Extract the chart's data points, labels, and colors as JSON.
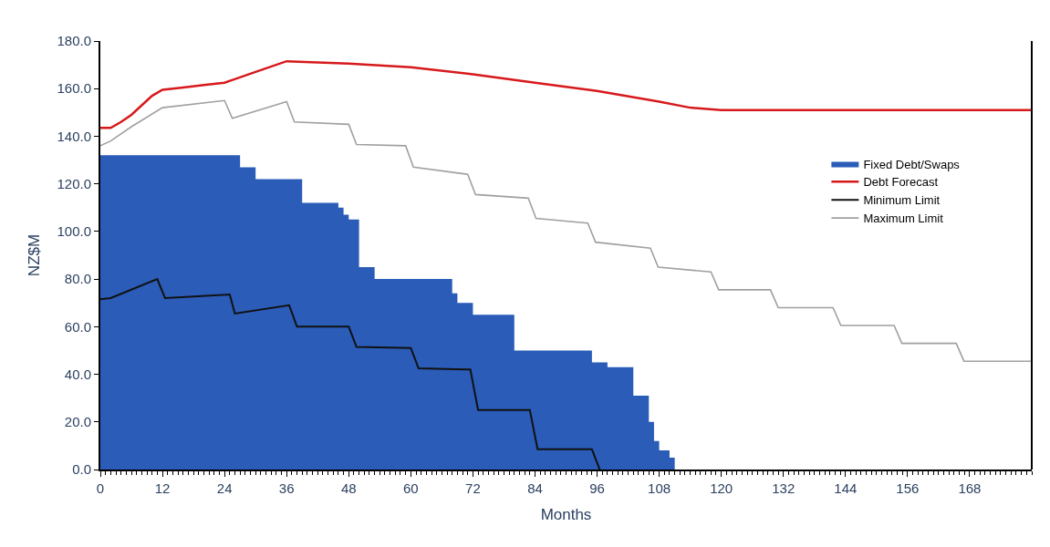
{
  "chart_data": {
    "type": "line",
    "xlabel": "Months",
    "ylabel": "NZ$M",
    "xlim": [
      0,
      180
    ],
    "ylim": [
      0,
      180
    ],
    "xticks": [
      0,
      12,
      24,
      36,
      48,
      60,
      72,
      84,
      96,
      108,
      120,
      132,
      144,
      156,
      168
    ],
    "yticks": [
      {
        "value": 0,
        "label": "0.0"
      },
      {
        "value": 20,
        "label": "20.0"
      },
      {
        "value": 40,
        "label": "40.0"
      },
      {
        "value": 60,
        "label": "60.0"
      },
      {
        "value": 80,
        "label": "80.0"
      },
      {
        "value": 100,
        "label": "100.0"
      },
      {
        "value": 120,
        "label": "120.0"
      },
      {
        "value": 140,
        "label": "140.0"
      },
      {
        "value": 160,
        "label": "160.0"
      },
      {
        "value": 180,
        "label": "180.0"
      }
    ],
    "legend": "right",
    "marker": "none",
    "series": [
      {
        "name": "Fixed Debt/Swaps",
        "type": "area",
        "color": "#2a5cb8",
        "x": [
          0,
          27,
          30,
          39,
          46,
          47,
          48,
          50,
          53,
          68,
          69,
          72,
          80,
          95,
          98,
          103,
          106,
          107,
          108,
          110,
          111
        ],
        "values": [
          132,
          127,
          122,
          112,
          110,
          107,
          105,
          85,
          80,
          74,
          70,
          65,
          50,
          45,
          43,
          31,
          20,
          12,
          8,
          5,
          0
        ]
      },
      {
        "name": "Debt Forecast",
        "color": "#d7191c",
        "x": [
          0,
          2,
          4,
          6,
          8,
          10,
          12,
          16,
          20,
          24,
          30,
          36,
          48,
          60,
          72,
          84,
          96,
          108,
          114,
          120,
          180
        ],
        "values": [
          143.5,
          143.5,
          146,
          149,
          153,
          157,
          159.5,
          160.5,
          161.5,
          162.5,
          167,
          171.5,
          170.5,
          169,
          166,
          162.5,
          159,
          154.5,
          152,
          151,
          151
        ]
      },
      {
        "name": "Minimum Limit",
        "color": "#111111",
        "x": [
          0,
          2,
          11,
          12.5,
          25,
          26,
          36.5,
          38,
          48,
          49.5,
          60,
          61.5,
          71.5,
          73,
          83,
          84.5,
          95,
          96.5
        ],
        "values": [
          71.5,
          72,
          80,
          72,
          73.5,
          65.5,
          69,
          60,
          60,
          51.5,
          51,
          42.5,
          42,
          25,
          25,
          8.5,
          8.5,
          0
        ]
      },
      {
        "name": "Maximum Limit",
        "color": "#a0a0a0",
        "x": [
          0,
          2,
          6,
          12,
          24,
          25.5,
          36,
          37.5,
          48,
          49.5,
          59,
          60.5,
          71,
          72.5,
          82.7,
          84.2,
          94.2,
          95.7,
          106.3,
          107.8,
          118,
          119.5,
          129.5,
          131,
          141.6,
          143.1,
          153.4,
          154.9,
          165.4,
          166.9,
          180
        ],
        "values": [
          136,
          138,
          144,
          152,
          155,
          147.5,
          154.5,
          146,
          145,
          136.5,
          136,
          127,
          124,
          115.5,
          114,
          105.5,
          103.5,
          95.5,
          93,
          85,
          83,
          75.5,
          75.5,
          68,
          68,
          60.5,
          60.5,
          53,
          53,
          45.5,
          45.5
        ]
      }
    ]
  }
}
